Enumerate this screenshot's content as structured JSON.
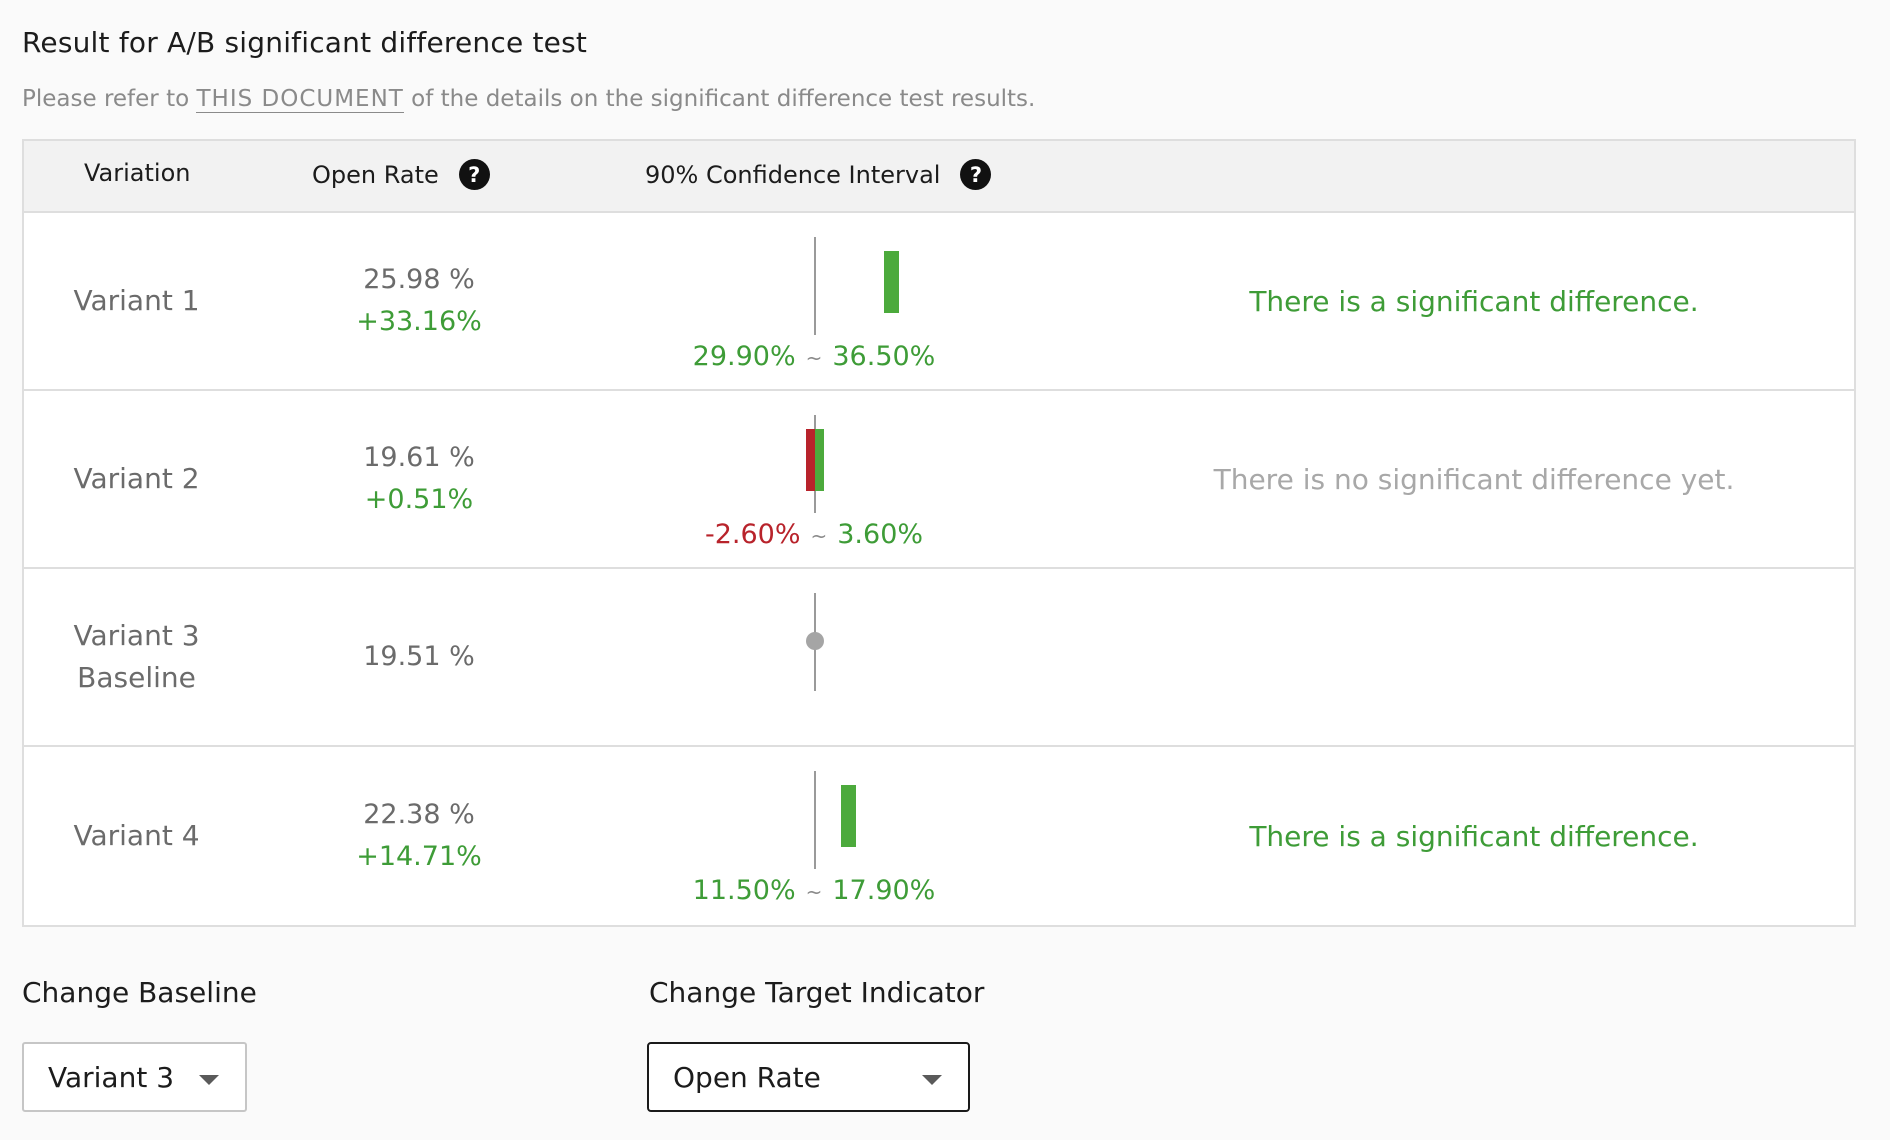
{
  "header": {
    "title": "Result for A/B significant difference test",
    "subtitle_prefix": "Please refer to ",
    "subtitle_link": "THIS DOCUMENT",
    "subtitle_suffix": " of the details on the significant difference test results."
  },
  "table": {
    "columns": {
      "variation": "Variation",
      "open_rate": "Open Rate",
      "confidence_interval": "90% Confidence Interval"
    },
    "rows": [
      {
        "name": "Variant 1",
        "baseline_label": "",
        "open_rate": "25.98 %",
        "lift": "+33.16%",
        "ci_low": "29.90%",
        "ci_high": "36.50%",
        "ci_low_value": 29.9,
        "ci_high_value": 36.5,
        "verdict": "There is a significant difference."
      },
      {
        "name": "Variant 2",
        "baseline_label": "",
        "open_rate": "19.61 %",
        "lift": "+0.51%",
        "ci_low": "-2.60%",
        "ci_high": "3.60%",
        "ci_low_value": -2.6,
        "ci_high_value": 3.6,
        "verdict": "There is no significant difference yet."
      },
      {
        "name": "Variant 3",
        "baseline_label": "Baseline",
        "open_rate": "19.51 %",
        "lift": "",
        "ci_low": "",
        "ci_high": "",
        "verdict": ""
      },
      {
        "name": "Variant 4",
        "baseline_label": "",
        "open_rate": "22.38 %",
        "lift": "+14.71%",
        "ci_low": "11.50%",
        "ci_high": "17.90%",
        "ci_low_value": 11.5,
        "ci_high_value": 17.9,
        "verdict": "There is a significant difference."
      }
    ],
    "ci_separator": "~"
  },
  "controls": {
    "baseline_label": "Change Baseline",
    "baseline_value": "Variant 3",
    "target_label": "Change Target Indicator",
    "target_value": "Open Rate"
  },
  "colors": {
    "positive": "#3e9c37",
    "negative": "#b8232b",
    "muted": "#a8a8a8"
  }
}
